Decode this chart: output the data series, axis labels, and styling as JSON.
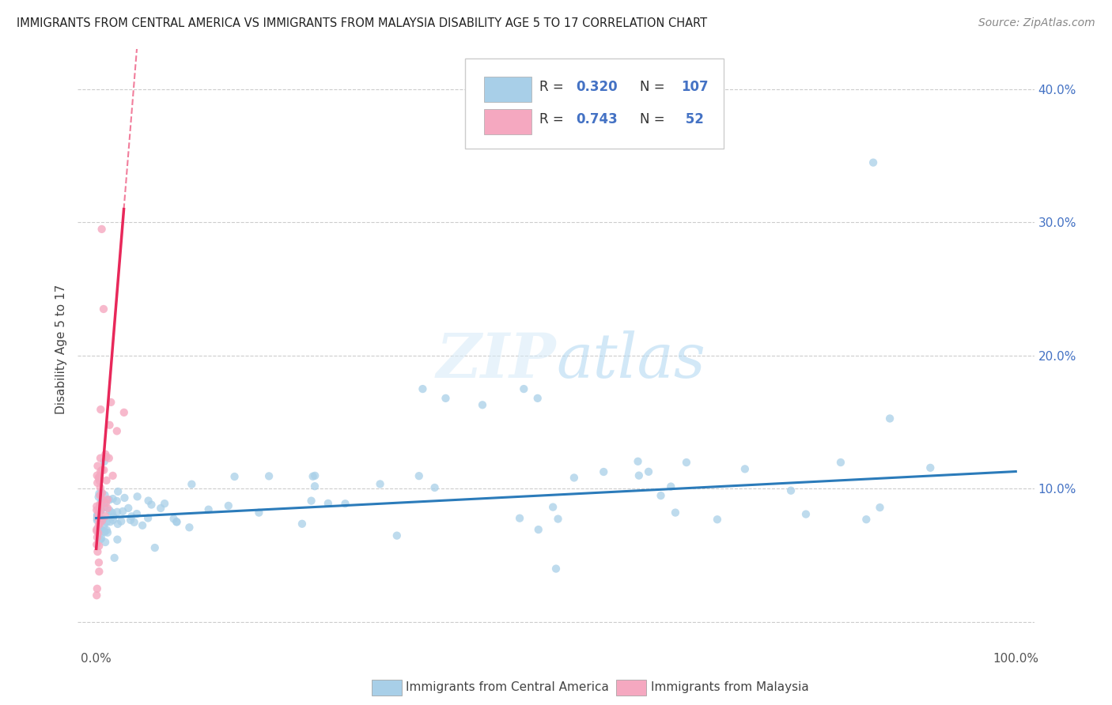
{
  "title": "IMMIGRANTS FROM CENTRAL AMERICA VS IMMIGRANTS FROM MALAYSIA DISABILITY AGE 5 TO 17 CORRELATION CHART",
  "source": "Source: ZipAtlas.com",
  "ylabel": "Disability Age 5 to 17",
  "legend_label1": "Immigrants from Central America",
  "legend_label2": "Immigrants from Malaysia",
  "R1": "0.320",
  "N1": "107",
  "R2": "0.743",
  "N2": "52",
  "color_blue": "#a8cfe8",
  "color_pink": "#f5a8c0",
  "color_blue_line": "#2b7bba",
  "color_pink_line": "#e8285a",
  "background_color": "#ffffff",
  "ytick_vals": [
    0.0,
    0.1,
    0.2,
    0.3,
    0.4
  ],
  "ytick_labels_right": [
    "",
    "10.0%",
    "20.0%",
    "30.0%",
    "40.0%"
  ],
  "xlim": [
    -0.02,
    1.02
  ],
  "ylim": [
    -0.02,
    0.43
  ]
}
